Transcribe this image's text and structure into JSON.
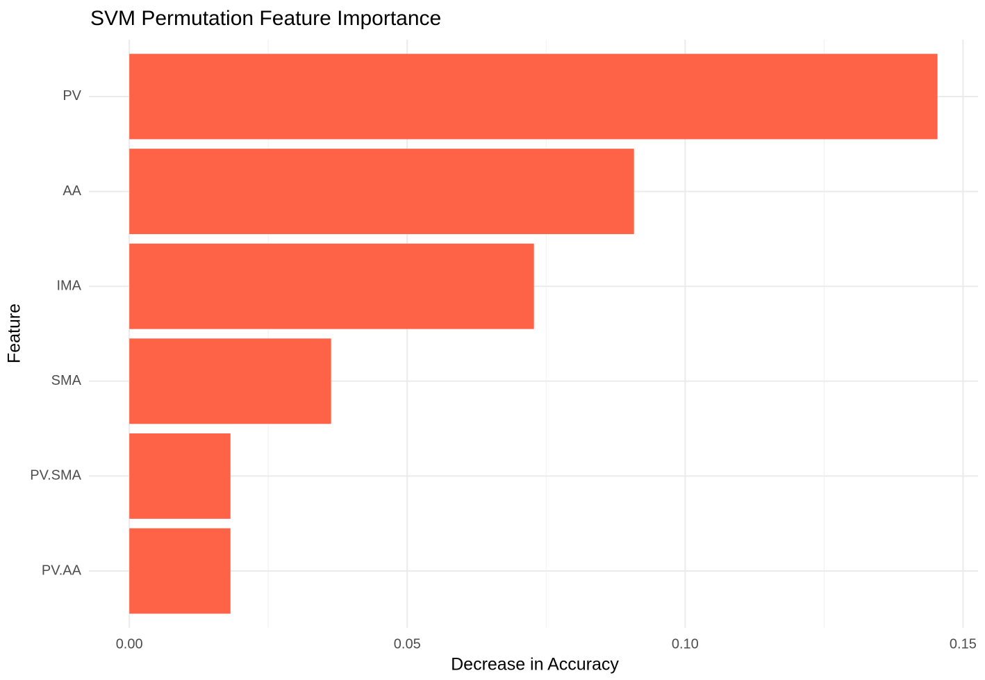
{
  "chart_data": {
    "type": "bar",
    "orientation": "horizontal",
    "title": "SVM Permutation Feature Importance",
    "x_label": "Decrease in Accuracy",
    "y_label": "Feature",
    "categories": [
      "PV",
      "AA",
      "IMA",
      "SMA",
      "PV.SMA",
      "PV.AA"
    ],
    "values": [
      0.1454,
      0.0908,
      0.0728,
      0.0363,
      0.0182,
      0.0182
    ],
    "color": "#ff6347",
    "xlim": [
      -0.00727,
      0.1527
    ],
    "xticks": [
      {
        "value": 0,
        "label": "0.00"
      },
      {
        "value": 0.05,
        "label": "0.05"
      },
      {
        "value": 0.1,
        "label": "0.10"
      },
      {
        "value": 0.15,
        "label": "0.15"
      }
    ],
    "minor_xticks": [
      0.025,
      0.075,
      0.125
    ],
    "grid": true
  }
}
